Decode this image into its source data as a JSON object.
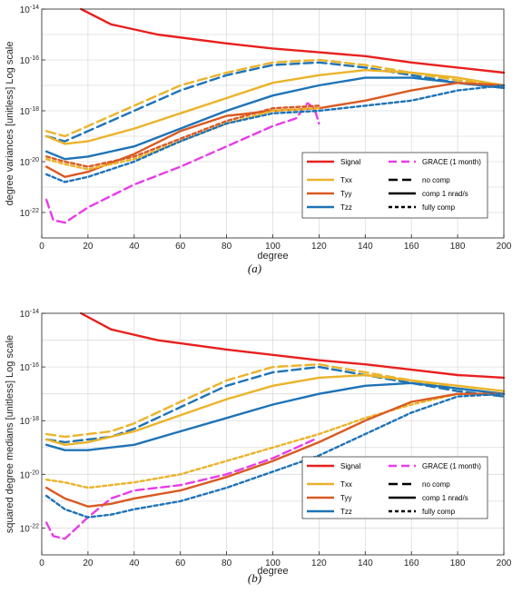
{
  "chart_data": [
    {
      "type": "line",
      "caption": "(a)",
      "xlabel": "degree",
      "ylabel": "degree variances [unitless] Log scale",
      "xlim": [
        0,
        200
      ],
      "ylim": [
        1e-23,
        1e-14
      ],
      "yscale": "log",
      "grid": true,
      "legend_position": "bottom-right",
      "x_ticks": [
        "0",
        "20",
        "40",
        "60",
        "80",
        "100",
        "120",
        "140",
        "160",
        "180",
        "200"
      ],
      "y_ticks": [
        "10-22",
        "10-20",
        "10-18",
        "10-16",
        "10-14"
      ],
      "legend": {
        "entries": [
          {
            "label": "Signal",
            "color": "#e8201e",
            "dash": "solid"
          },
          {
            "label": "GRACE (1 month)",
            "color": "#e83ce8",
            "dash": "dash"
          },
          {
            "label": "Txx",
            "color": "#ebb32a",
            "dash": "solid"
          },
          {
            "label": "no comp",
            "color": "#000000",
            "dash": "longdash"
          },
          {
            "label": "Tyy",
            "color": "#d95a22",
            "dash": "solid"
          },
          {
            "label": "comp 1 nrad/s",
            "color": "#000000",
            "dash": "solid"
          },
          {
            "label": "Tzz",
            "color": "#1e73b6",
            "dash": "solid"
          },
          {
            "label": "fully comp",
            "color": "#000000",
            "dash": "shortdash"
          }
        ]
      },
      "series": [
        {
          "name": "Signal",
          "color": "#e8201e",
          "dash": "solid",
          "x": [
            17,
            30,
            50,
            80,
            100,
            120,
            140,
            160,
            180,
            200
          ],
          "y": [
            -14,
            -14.6,
            -15,
            -15.35,
            -15.55,
            -15.7,
            -15.85,
            -16.1,
            -16.3,
            -16.5
          ]
        },
        {
          "name": "GRACE (1 month)",
          "color": "#e83ce8",
          "dash": "dash",
          "x": [
            2,
            5,
            10,
            20,
            40,
            60,
            80,
            100,
            110,
            115,
            118,
            120
          ],
          "y": [
            -21.5,
            -22.3,
            -22.4,
            -21.8,
            -20.9,
            -20.2,
            -19.4,
            -18.6,
            -18.3,
            -17.7,
            -17.9,
            -18.5
          ]
        },
        {
          "name": "Txx no comp",
          "color": "#ebb32a",
          "dash": "longdash",
          "x": [
            2,
            10,
            20,
            40,
            60,
            80,
            100,
            120,
            140,
            160,
            180,
            200
          ],
          "y": [
            -18.8,
            -19,
            -18.6,
            -17.8,
            -17,
            -16.5,
            -16.1,
            -16,
            -16.2,
            -16.5,
            -16.8,
            -17
          ]
        },
        {
          "name": "Tzz no comp",
          "color": "#1e73b6",
          "dash": "longdash",
          "x": [
            2,
            10,
            20,
            40,
            60,
            80,
            100,
            120,
            140,
            160,
            180,
            200
          ],
          "y": [
            -19,
            -19.2,
            -18.8,
            -18,
            -17.2,
            -16.6,
            -16.2,
            -16.1,
            -16.3,
            -16.6,
            -16.9,
            -17.1
          ]
        },
        {
          "name": "Txx comp 1 nrad/s",
          "color": "#ebb32a",
          "dash": "solid",
          "x": [
            2,
            10,
            20,
            40,
            60,
            80,
            100,
            120,
            140,
            160,
            180,
            200
          ],
          "y": [
            -19,
            -19.3,
            -19.2,
            -18.7,
            -18.1,
            -17.5,
            -16.9,
            -16.6,
            -16.4,
            -16.5,
            -16.7,
            -17
          ]
        },
        {
          "name": "Tzz comp 1 nrad/s",
          "color": "#1e73b6",
          "dash": "solid",
          "x": [
            2,
            10,
            20,
            40,
            60,
            80,
            100,
            120,
            140,
            160,
            180,
            200
          ],
          "y": [
            -19.6,
            -19.9,
            -19.8,
            -19.4,
            -18.7,
            -18,
            -17.4,
            -17,
            -16.7,
            -16.7,
            -16.9,
            -17.1
          ]
        },
        {
          "name": "Tyy comp 1 nrad/s",
          "color": "#d95a22",
          "dash": "solid",
          "x": [
            2,
            10,
            20,
            40,
            60,
            80,
            100,
            120,
            140,
            160,
            180,
            200
          ],
          "y": [
            -20.2,
            -20.6,
            -20.4,
            -19.7,
            -18.8,
            -18.2,
            -18,
            -17.9,
            -17.6,
            -17.2,
            -16.9,
            -17
          ]
        },
        {
          "name": "Tyy fully comp",
          "color": "#d95a22",
          "dash": "shortdash",
          "x": [
            2,
            10,
            20,
            40,
            60,
            80,
            100,
            120
          ],
          "y": [
            -19.8,
            -20,
            -20.2,
            -19.8,
            -19.1,
            -18.4,
            -17.9,
            -17.8
          ]
        },
        {
          "name": "Txx fully comp",
          "color": "#ebb32a",
          "dash": "shortdash",
          "x": [
            2,
            10,
            20,
            40,
            60,
            80,
            100,
            120
          ],
          "y": [
            -19.9,
            -20.1,
            -20.3,
            -19.9,
            -19.2,
            -18.5,
            -18,
            -17.9
          ]
        },
        {
          "name": "Tzz fully comp",
          "color": "#1e73b6",
          "dash": "shortdash",
          "x": [
            2,
            10,
            20,
            40,
            60,
            80,
            100,
            120,
            140,
            160,
            180,
            200
          ],
          "y": [
            -20.5,
            -20.8,
            -20.6,
            -20,
            -19.2,
            -18.5,
            -18.1,
            -18,
            -17.8,
            -17.6,
            -17.2,
            -17
          ]
        }
      ]
    },
    {
      "type": "line",
      "caption": "(b)",
      "xlabel": "degree",
      "ylabel": "squared degree medians [unitless] Log scale",
      "xlim": [
        0,
        200
      ],
      "ylim": [
        1e-23,
        1e-14
      ],
      "yscale": "log",
      "grid": true,
      "legend_position": "bottom-right",
      "x_ticks": [
        "0",
        "20",
        "40",
        "60",
        "80",
        "100",
        "120",
        "140",
        "160",
        "180",
        "200"
      ],
      "y_ticks": [
        "10-22",
        "10-20",
        "10-18",
        "10-16",
        "10-14"
      ],
      "legend": {
        "entries": [
          {
            "label": "Signal",
            "color": "#e8201e",
            "dash": "solid"
          },
          {
            "label": "GRACE (1 month)",
            "color": "#e83ce8",
            "dash": "dash"
          },
          {
            "label": "Txx",
            "color": "#ebb32a",
            "dash": "solid"
          },
          {
            "label": "no comp",
            "color": "#000000",
            "dash": "longdash"
          },
          {
            "label": "Tyy",
            "color": "#d95a22",
            "dash": "solid"
          },
          {
            "label": "comp 1 nrad/s",
            "color": "#000000",
            "dash": "solid"
          },
          {
            "label": "Tzz",
            "color": "#1e73b6",
            "dash": "solid"
          },
          {
            "label": "fully comp",
            "color": "#000000",
            "dash": "shortdash"
          }
        ]
      },
      "series": [
        {
          "name": "Signal",
          "color": "#e8201e",
          "dash": "solid",
          "x": [
            17,
            30,
            50,
            80,
            100,
            120,
            140,
            160,
            180,
            200
          ],
          "y": [
            -14,
            -14.6,
            -15,
            -15.35,
            -15.55,
            -15.75,
            -15.9,
            -16.1,
            -16.3,
            -16.4
          ]
        },
        {
          "name": "GRACE (1 month)",
          "color": "#e83ce8",
          "dash": "dash",
          "x": [
            2,
            5,
            10,
            20,
            30,
            40,
            60,
            80,
            100,
            118
          ],
          "y": [
            -21.8,
            -22.3,
            -22.4,
            -21.6,
            -20.9,
            -20.6,
            -20.4,
            -20,
            -19.4,
            -18.7
          ]
        },
        {
          "name": "Txx no comp",
          "color": "#ebb32a",
          "dash": "longdash",
          "x": [
            2,
            10,
            20,
            30,
            40,
            60,
            80,
            100,
            120,
            140,
            160,
            180,
            200
          ],
          "y": [
            -18.5,
            -18.6,
            -18.5,
            -18.4,
            -18.1,
            -17.3,
            -16.5,
            -16,
            -15.9,
            -16.2,
            -16.5,
            -16.8,
            -17
          ]
        },
        {
          "name": "Tzz no comp",
          "color": "#1e73b6",
          "dash": "longdash",
          "x": [
            2,
            10,
            20,
            30,
            40,
            60,
            80,
            100,
            120,
            140,
            160,
            180,
            200
          ],
          "y": [
            -18.7,
            -18.8,
            -18.7,
            -18.6,
            -18.3,
            -17.5,
            -16.7,
            -16.2,
            -16,
            -16.3,
            -16.6,
            -16.9,
            -17.1
          ]
        },
        {
          "name": "Txx comp 1 nrad/s",
          "color": "#ebb32a",
          "dash": "solid",
          "x": [
            2,
            10,
            20,
            40,
            60,
            80,
            100,
            120,
            140,
            160,
            180,
            200
          ],
          "y": [
            -18.7,
            -18.9,
            -18.8,
            -18.4,
            -17.8,
            -17.2,
            -16.7,
            -16.4,
            -16.3,
            -16.5,
            -16.7,
            -16.9
          ]
        },
        {
          "name": "Tzz comp 1 nrad/s",
          "color": "#1e73b6",
          "dash": "solid",
          "x": [
            2,
            10,
            20,
            40,
            60,
            80,
            100,
            120,
            140,
            160,
            180,
            200
          ],
          "y": [
            -18.9,
            -19.1,
            -19.1,
            -18.9,
            -18.4,
            -17.9,
            -17.4,
            -17,
            -16.7,
            -16.6,
            -16.8,
            -17
          ]
        },
        {
          "name": "Txx fully comp",
          "color": "#ebb32a",
          "dash": "shortdash",
          "x": [
            2,
            10,
            20,
            40,
            60,
            80,
            100,
            120,
            140,
            160,
            180,
            200
          ],
          "y": [
            -20.2,
            -20.3,
            -20.5,
            -20.3,
            -20,
            -19.5,
            -19,
            -18.5,
            -17.9,
            -17.4,
            -17,
            -17
          ]
        },
        {
          "name": "Tyy comp 1 nrad/s",
          "color": "#d95a22",
          "dash": "solid",
          "x": [
            2,
            10,
            20,
            30,
            40,
            60,
            80,
            100,
            120,
            140,
            160,
            180,
            200
          ],
          "y": [
            -20.5,
            -20.9,
            -21.2,
            -21.1,
            -20.9,
            -20.6,
            -20.1,
            -19.5,
            -18.8,
            -18,
            -17.3,
            -17,
            -17
          ]
        },
        {
          "name": "Tzz fully comp",
          "color": "#1e73b6",
          "dash": "shortdash",
          "x": [
            2,
            10,
            20,
            30,
            40,
            60,
            80,
            100,
            120,
            140,
            160,
            180,
            200
          ],
          "y": [
            -20.8,
            -21.3,
            -21.6,
            -21.5,
            -21.3,
            -21,
            -20.5,
            -19.9,
            -19.3,
            -18.5,
            -17.7,
            -17.1,
            -17
          ]
        }
      ]
    }
  ]
}
